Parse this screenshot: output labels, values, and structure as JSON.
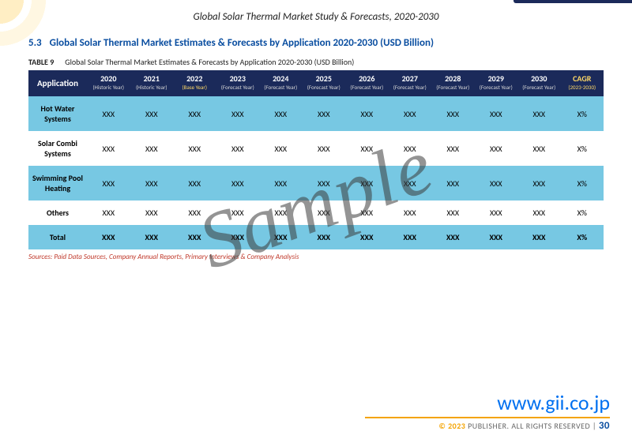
{
  "header": {
    "title": "Global Solar Thermal Market Study & Forecasts, 2020-2030"
  },
  "section": {
    "number": "5.3",
    "title": "Global Solar Thermal Market Estimates & Forecasts by Application 2020-2030 (USD Billion)"
  },
  "table": {
    "caption_label": "TABLE 9",
    "caption_text": "Global Solar Thermal Market Estimates & Forecasts by Application 2020-2030 (USD Billion)",
    "head_application": "Application",
    "head_cagr": "CAGR",
    "head_cagr_sub": "(2023-2030)",
    "years": [
      {
        "y": "2020",
        "sub": "(Historic Year)",
        "base": false
      },
      {
        "y": "2021",
        "sub": "(Historic Year)",
        "base": false
      },
      {
        "y": "2022",
        "sub": "(Base Year)",
        "base": true
      },
      {
        "y": "2023",
        "sub": "(Forecast Year)",
        "base": false
      },
      {
        "y": "2024",
        "sub": "(Forecast Year)",
        "base": false
      },
      {
        "y": "2025",
        "sub": "(Forecast Year)",
        "base": false
      },
      {
        "y": "2026",
        "sub": "(Forecast Year)",
        "base": false
      },
      {
        "y": "2027",
        "sub": "(Forecast Year)",
        "base": false
      },
      {
        "y": "2028",
        "sub": "(Forecast Year)",
        "base": false
      },
      {
        "y": "2029",
        "sub": "(Forecast Year)",
        "base": false
      },
      {
        "y": "2030",
        "sub": "(Forecast Year)",
        "base": false
      }
    ],
    "rows": [
      {
        "label": "Hot Water Systems",
        "cells": [
          "XXX",
          "XXX",
          "XXX",
          "XXX",
          "XXX",
          "XXX",
          "XXX",
          "XXX",
          "XXX",
          "XXX",
          "XXX"
        ],
        "cagr": "X%"
      },
      {
        "label": "Solar Combi Systems",
        "cells": [
          "XXX",
          "XXX",
          "XXX",
          "XXX",
          "XXX",
          "XXX",
          "XXX",
          "XXX",
          "XXX",
          "XXX",
          "XXX"
        ],
        "cagr": "X%"
      },
      {
        "label": "Swimming Pool Heating",
        "cells": [
          "XXX",
          "XXX",
          "XXX",
          "XXX",
          "XXX",
          "XXX",
          "XXX",
          "XXX",
          "XXX",
          "XXX",
          "XXX"
        ],
        "cagr": "X%"
      },
      {
        "label": "Others",
        "cells": [
          "XXX",
          "XXX",
          "XXX",
          "XXX",
          "XXX",
          "XXX",
          "XXX",
          "XXX",
          "XXX",
          "XXX",
          "XXX"
        ],
        "cagr": "X%"
      },
      {
        "label": "Total",
        "cells": [
          "XXX",
          "XXX",
          "XXX",
          "XXX",
          "XXX",
          "XXX",
          "XXX",
          "XXX",
          "XXX",
          "XXX",
          "XXX"
        ],
        "cagr": "X%",
        "total": true
      }
    ],
    "sources": "Sources: Paid Data Sources, Company Annual Reports, Primary Interviews & Company Analysis"
  },
  "watermark": "Sample",
  "footer": {
    "url": "www.gii.co.jp",
    "copyright_symbol": "©",
    "copyright_year": "2023",
    "copyright_text": "PUBLISHER. ALL RIGHTS RESERVED",
    "separator": " | ",
    "page": "30"
  }
}
